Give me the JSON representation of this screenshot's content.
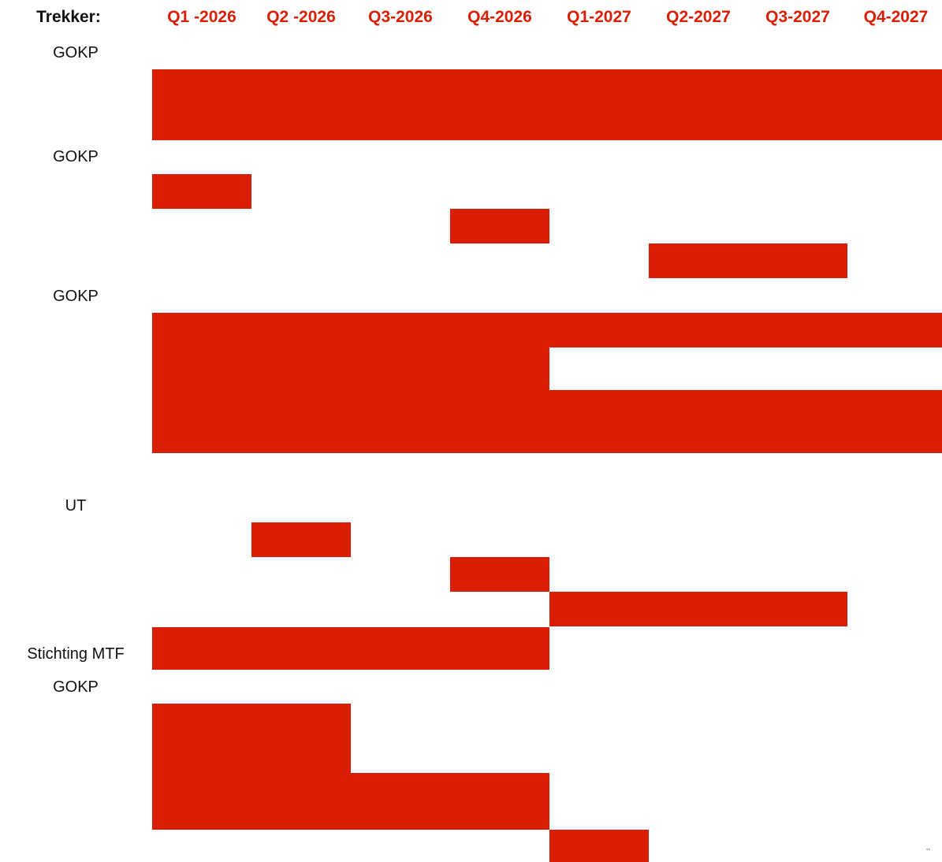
{
  "chart_data": {
    "type": "gantt",
    "header_label": "Trekker:",
    "periods": [
      "Q1 -2026",
      "Q2 -2026",
      "Q3-2026",
      "Q4-2026",
      "Q1-2027",
      "Q2-2027",
      "Q3-2027",
      "Q4-2027"
    ],
    "groups": [
      {
        "owner": "GOKP",
        "tasks": [
          {
            "start": 1,
            "end": 8
          },
          {
            "start": 1,
            "end": 8
          }
        ]
      },
      {
        "owner": "GOKP",
        "tasks": [
          {
            "start": 1,
            "end": 1
          },
          {
            "start": 4,
            "end": 4
          },
          {
            "start": 6,
            "end": 7
          }
        ]
      },
      {
        "owner": "GOKP",
        "tasks": [
          {
            "start": 1,
            "end": 8
          },
          {
            "start": 1,
            "end": 4
          },
          {
            "start": 1,
            "end": 8
          },
          {
            "start": 1,
            "end": 8
          }
        ]
      },
      {
        "owner": "UT",
        "tasks": [
          {
            "start": 2,
            "end": 2
          },
          {
            "start": 4,
            "end": 4
          },
          {
            "start": 5,
            "end": 7
          }
        ]
      },
      {
        "owner": "Stichting MTF",
        "tasks": [
          {
            "start": 1,
            "end": 4
          }
        ]
      },
      {
        "owner": "GOKP",
        "tasks": [
          {
            "start": 1,
            "end": 2
          },
          {
            "start": 1,
            "end": 4
          },
          {
            "start": 5,
            "end": 5
          }
        ]
      }
    ]
  },
  "colors": {
    "bar": "#D91E05",
    "header_text": "#D91E05",
    "label_text": "#111111"
  },
  "footer": {
    "glyph": "¨"
  }
}
